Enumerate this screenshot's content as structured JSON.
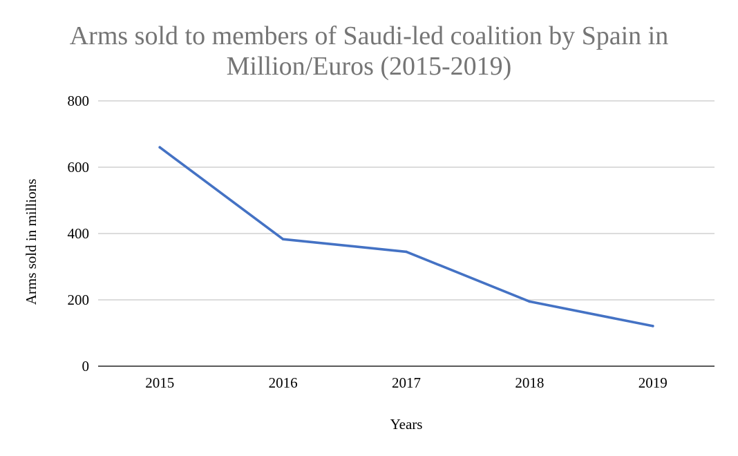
{
  "chart_data": {
    "type": "line",
    "title_lines": [
      "Arms sold to members of Saudi-led coalition by Spain in",
      "Million/Euros (2015-2019)"
    ],
    "xlabel": "Years",
    "ylabel": "Arms sold in millions",
    "categories": [
      "2015",
      "2016",
      "2017",
      "2018",
      "2019"
    ],
    "series": [
      {
        "values": [
          660,
          383,
          345,
          195,
          121
        ],
        "color": "#4472c4"
      }
    ],
    "y_ticks": [
      "0",
      "200",
      "400",
      "600",
      "800"
    ],
    "ylim": [
      0,
      800
    ],
    "grid": true,
    "legend": "none"
  }
}
